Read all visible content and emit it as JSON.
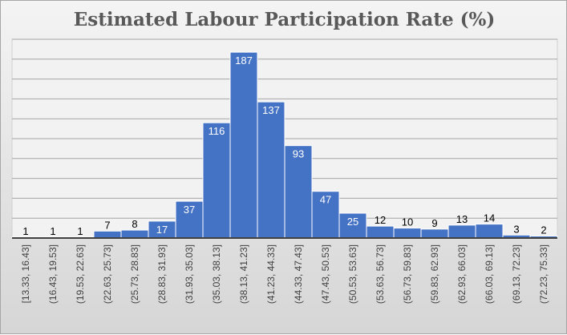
{
  "chart_data": {
    "type": "bar",
    "title": "Estimated Labour Participation Rate (%)",
    "xlabel": "",
    "ylabel": "",
    "ylim": [
      0,
      200
    ],
    "grid": true,
    "legend": "none",
    "bar_color": "#4472c4",
    "categories": [
      "[13.33, 16.43]",
      "(16.43, 19.53]",
      "(19.53, 22.63]",
      "(22.63, 25.73]",
      "(25.73, 28.83]",
      "(28.83, 31.93]",
      "(31.93, 35.03]",
      "(35.03, 38.13]",
      "(38.13, 41.23]",
      "(41.23, 44.33]",
      "(44.33, 47.43]",
      "(47.43, 50.53]",
      "(50.53, 53.63]",
      "(53.63, 56.73]",
      "(56.73, 59.83]",
      "(59.83, 62.93]",
      "(62.93, 66.03]",
      "(66.03, 69.13]",
      "(69.13, 72.23]",
      "(72.23, 75.33]"
    ],
    "values": [
      1,
      1,
      1,
      7,
      8,
      17,
      37,
      116,
      187,
      137,
      93,
      47,
      25,
      12,
      10,
      9,
      13,
      14,
      3,
      2
    ]
  }
}
